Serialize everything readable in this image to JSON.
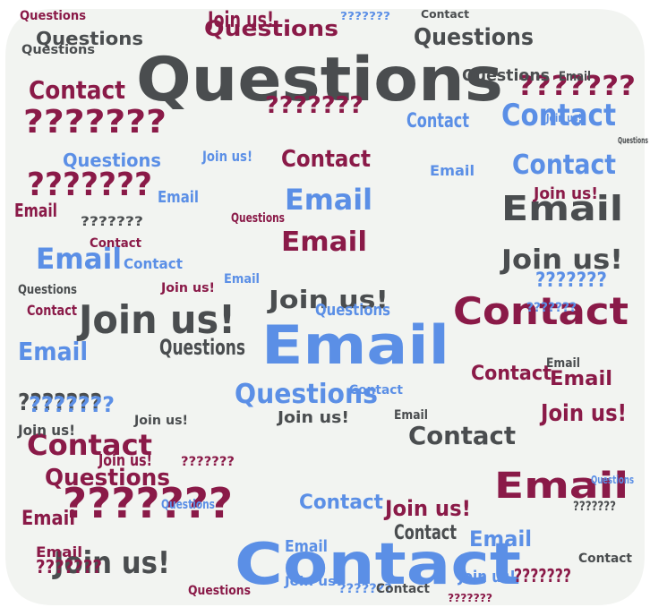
{
  "word_cloud": {
    "words": [
      {
        "text": "Questions",
        "color": "dark-gray"
      },
      {
        "text": "Contact",
        "color": "blue"
      },
      {
        "text": "Email",
        "color": "blue"
      },
      {
        "text": "Join us!",
        "color": "dark-gray"
      },
      {
        "text": "Contact",
        "color": "maroon"
      },
      {
        "text": "Email",
        "color": "maroon"
      },
      {
        "text": "Join us!",
        "color": "dark-gray"
      },
      {
        "text": "???????",
        "color": "maroon"
      },
      {
        "text": "Questions",
        "color": "maroon"
      },
      {
        "text": "???????",
        "color": "maroon"
      },
      {
        "text": "???????",
        "color": "maroon"
      },
      {
        "text": "Contact",
        "color": "blue"
      },
      {
        "text": "Contact",
        "color": "blue"
      },
      {
        "text": "Email",
        "color": "blue"
      },
      {
        "text": "Questions",
        "color": "blue"
      },
      {
        "text": "Email",
        "color": "maroon"
      },
      {
        "text": "Email",
        "color": "dark-gray"
      },
      {
        "text": "Contact",
        "color": "maroon"
      },
      {
        "text": "Join us!",
        "color": "dark-gray"
      },
      {
        "text": "Questions",
        "color": "maroon"
      },
      {
        "text": "Email",
        "color": "blue"
      },
      {
        "text": "???????",
        "color": "maroon"
      },
      {
        "text": "Questions",
        "color": "dark-gray"
      },
      {
        "text": "???????",
        "color": "maroon"
      },
      {
        "text": "Email",
        "color": "blue"
      },
      {
        "text": "Contact",
        "color": "dark-gray"
      },
      {
        "text": "Join us!",
        "color": "dark-gray"
      },
      {
        "text": "Contact",
        "color": "maroon"
      },
      {
        "text": "Join us!",
        "color": "maroon"
      },
      {
        "text": "???????",
        "color": "dark-gray"
      },
      {
        "text": "Email",
        "color": "blue"
      },
      {
        "text": "Contact",
        "color": "maroon"
      },
      {
        "text": "Email",
        "color": "maroon"
      },
      {
        "text": "Join us!",
        "color": "maroon"
      },
      {
        "text": "Questions",
        "color": "dark-gray"
      },
      {
        "text": "Questions",
        "color": "blue"
      },
      {
        "text": "???????",
        "color": "blue"
      },
      {
        "text": "Questions",
        "color": "dark-gray"
      },
      {
        "text": "Contact",
        "color": "maroon"
      },
      {
        "text": "Join us!",
        "color": "dark-gray"
      },
      {
        "text": "Email",
        "color": "maroon"
      },
      {
        "text": "Contact",
        "color": "dark-gray"
      },
      {
        "text": "Join us!",
        "color": "maroon"
      },
      {
        "text": "???????",
        "color": "blue"
      },
      {
        "text": "Questions",
        "color": "blue"
      },
      {
        "text": "Contact",
        "color": "blue"
      },
      {
        "text": "Email",
        "color": "maroon"
      },
      {
        "text": "Join us!",
        "color": "maroon"
      },
      {
        "text": "Questions",
        "color": "dark-gray"
      },
      {
        "text": "???????",
        "color": "maroon"
      },
      {
        "text": "Contact",
        "color": "blue"
      },
      {
        "text": "Email",
        "color": "blue"
      },
      {
        "text": "Join us!",
        "color": "blue"
      },
      {
        "text": "Questions",
        "color": "maroon"
      },
      {
        "text": "???????",
        "color": "blue"
      },
      {
        "text": "Contact",
        "color": "dark-gray"
      },
      {
        "text": "Email",
        "color": "dark-gray"
      },
      {
        "text": "Join us!",
        "color": "blue"
      },
      {
        "text": "Questions",
        "color": "dark-gray"
      },
      {
        "text": "???????",
        "color": "dark-gray"
      },
      {
        "text": "Contact",
        "color": "maroon"
      },
      {
        "text": "Email",
        "color": "blue"
      },
      {
        "text": "Join us!",
        "color": "maroon"
      },
      {
        "text": "Questions",
        "color": "blue"
      },
      {
        "text": "???????",
        "color": "maroon"
      },
      {
        "text": "Contact",
        "color": "blue"
      },
      {
        "text": "Email",
        "color": "dark-gray"
      },
      {
        "text": "Join us!",
        "color": "dark-gray"
      },
      {
        "text": "Questions",
        "color": "maroon"
      },
      {
        "text": "???????",
        "color": "blue"
      },
      {
        "text": "Contact",
        "color": "dark-gray"
      },
      {
        "text": "Email",
        "color": "maroon"
      },
      {
        "text": "Join us!",
        "color": "blue"
      },
      {
        "text": "Questions",
        "color": "dark-gray"
      },
      {
        "text": "???????",
        "color": "maroon"
      },
      {
        "text": "Contact",
        "color": "blue"
      },
      {
        "text": "Email",
        "color": "blue"
      },
      {
        "text": "Join us!",
        "color": "maroon"
      },
      {
        "text": "Questions",
        "color": "blue"
      },
      {
        "text": "???????",
        "color": "dark-gray"
      },
      {
        "text": "Contact",
        "color": "maroon"
      },
      {
        "text": "Email",
        "color": "dark-gray"
      },
      {
        "text": "Join us!",
        "color": "dark-gray"
      },
      {
        "text": "Questions",
        "color": "maroon"
      },
      {
        "text": "???????",
        "color": "blue"
      },
      {
        "text": "Contact",
        "color": "dark-gray"
      },
      {
        "text": "Email",
        "color": "blue"
      },
      {
        "text": "Join us!",
        "color": "blue"
      },
      {
        "text": "Questions",
        "color": "dark-gray"
      },
      {
        "text": "???????",
        "color": "maroon"
      }
    ]
  },
  "colors": {
    "maroon": "#8a1a48",
    "blue": "#5b8fe6",
    "dark-gray": "#4a4d4f",
    "shape-fill": "#f2f4f1",
    "page": "#ffffff"
  }
}
